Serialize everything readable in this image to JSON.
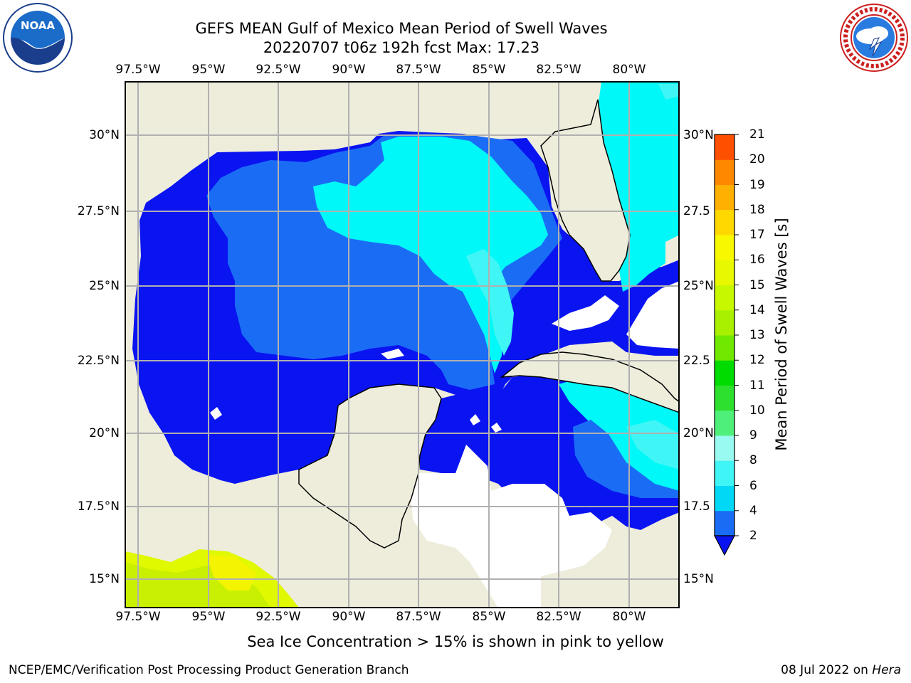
{
  "title": {
    "line1": "GEFS MEAN Gulf of Mexico Mean Period of Swell Waves",
    "line2": "20220707 t06z 192h fcst   Max: 17.23"
  },
  "map": {
    "lon_labels": [
      "97.5°W",
      "95°W",
      "92.5°W",
      "90°W",
      "87.5°W",
      "85°W",
      "82.5°W",
      "80°W"
    ],
    "lat_labels_left": [
      "30°N",
      "27.5°N",
      "25°N",
      "22.5°N",
      "20°N",
      "17.5°N",
      "15°N"
    ],
    "lat_labels_right": [
      "30°N",
      "27.5",
      "25°N",
      "22.5",
      "20°N",
      "17.5",
      "15°N"
    ],
    "extent": {
      "lon_min": -98.0,
      "lon_max": -78.3,
      "lat_min": 14.0,
      "lat_max": 31.7
    },
    "land_color": "#eeeddc",
    "ocean_no_swell_color": "#ffffff",
    "grid_color": "#b0b0b0"
  },
  "colorbar": {
    "label": "Mean Period of Swell Waves [s]",
    "ticks": [
      "2",
      "4",
      "6",
      "8",
      "9",
      "10",
      "11",
      "12",
      "13",
      "14",
      "15",
      "16",
      "17",
      "18",
      "19",
      "20",
      "21"
    ],
    "colors": [
      "#1a6cf5",
      "#00d8f5",
      "#40f5f5",
      "#98faf0",
      "#4ff07a",
      "#2ee02e",
      "#00dc00",
      "#70e800",
      "#a8f000",
      "#c8f800",
      "#e8f800",
      "#f8f800",
      "#ffd800",
      "#ffb000",
      "#ff8800",
      "#ff5000",
      "#ff2000",
      "#ff0000"
    ],
    "under_color": "#0a14f0",
    "field_colors": {
      "lt2": "#0a14f0",
      "c2_4": "#1a6cf5",
      "c4_6": "#00f8f8",
      "c6_8": "#40f5f5"
    }
  },
  "note": "Sea Ice Concentration > 15% is shown in pink to yellow",
  "footer": {
    "left": "NCEP/EMC/Verification Post Processing Product Generation Branch",
    "right_prefix": "08 Jul 2022 on ",
    "right_machine": "Hera"
  },
  "logos": {
    "noaa_text": "NOAA",
    "noaa_ring": "NATIONAL OCEANIC AND ATMOSPHERIC ADMINISTRATION · U.S. DEPARTMENT OF COMMERCE",
    "nws_ring": "NATIONAL WEATHER SERVICE"
  }
}
